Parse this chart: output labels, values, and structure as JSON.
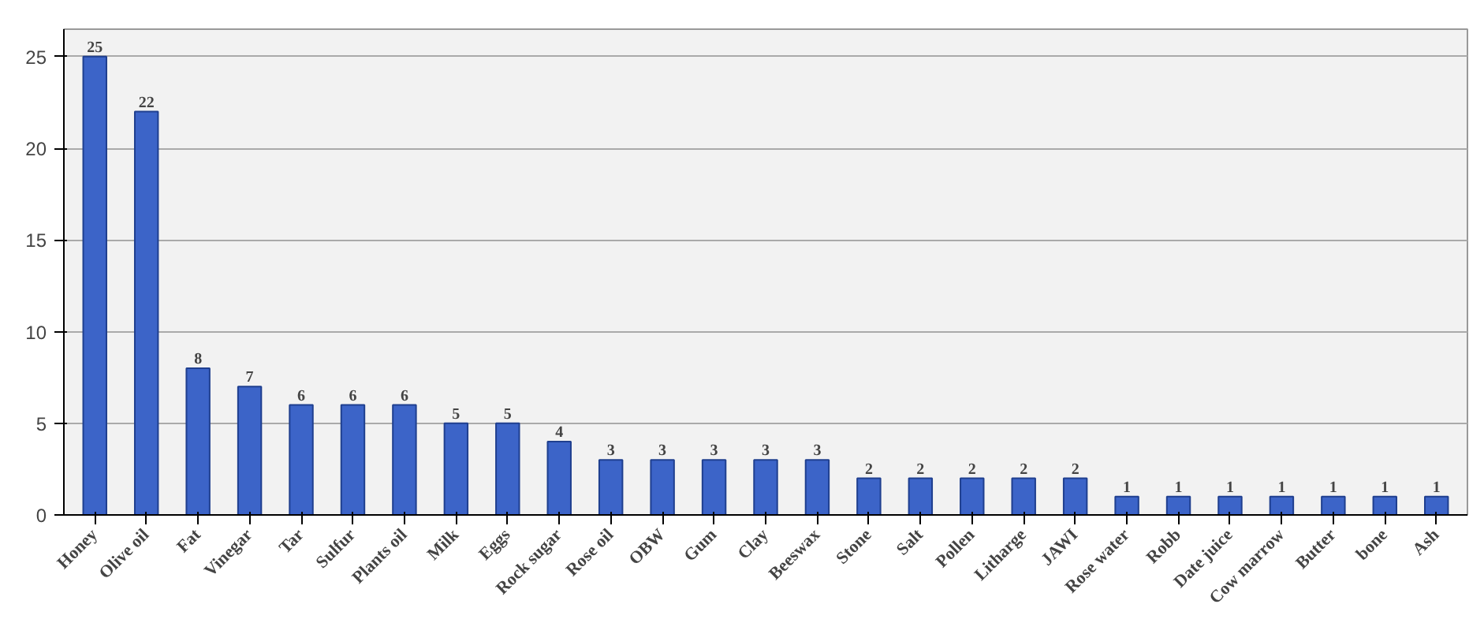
{
  "chart_data": {
    "type": "bar",
    "categories": [
      "Honey",
      "Olive oil",
      "Fat",
      "Vinegar",
      "Tar",
      "Sulfur",
      "Plants oil",
      "Milk",
      "Eggs",
      "Rock sugar",
      "Rose oil",
      "OBW",
      "Gum",
      "Clay",
      "Beeswax",
      "Stone",
      "Salt",
      "Pollen",
      "Litharge",
      "JAWI",
      "Rose water",
      "Robb",
      "Date juice",
      "Cow marrow",
      "Butter",
      "bone",
      "Ash"
    ],
    "values": [
      25,
      22,
      8,
      7,
      6,
      6,
      6,
      5,
      5,
      4,
      3,
      3,
      3,
      3,
      3,
      2,
      2,
      2,
      2,
      2,
      1,
      1,
      1,
      1,
      1,
      1,
      1
    ],
    "color": "#3c64c8",
    "ylim": [
      0,
      26.5
    ],
    "yticks": [
      0,
      5,
      10,
      15,
      20,
      25
    ],
    "grid": "y",
    "data_labels": true
  }
}
